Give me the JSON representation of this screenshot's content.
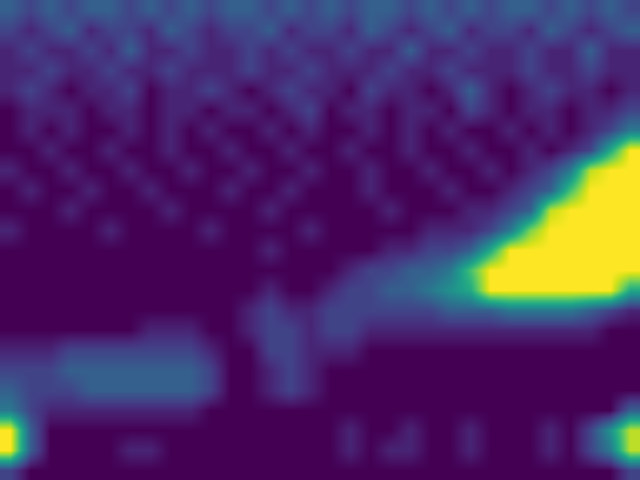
{
  "chart_data": {
    "type": "heatmap",
    "color": "Viridis",
    "tick_labels": false,
    "zlim": [
      0,
      1
    ],
    "z": [
      [
        0.3,
        0.2,
        0.3,
        0.2,
        0.3,
        0.3,
        0.2,
        0.3,
        0.2,
        0.3,
        0.2,
        0.3,
        0.3,
        0.2,
        0.3,
        0.2,
        0.3,
        0.2,
        0.3,
        0.3,
        0.2,
        0.3,
        0.2,
        0.3,
        0.2,
        0.3,
        0.3,
        0.2,
        0.3,
        0.2,
        0.3,
        0.2
      ],
      [
        0.2,
        0.1,
        0.2,
        0.3,
        0.1,
        0.2,
        0.2,
        0.1,
        0.3,
        0.2,
        0.1,
        0.2,
        0.2,
        0.3,
        0.1,
        0.2,
        0.2,
        0.1,
        0.3,
        0.2,
        0.1,
        0.2,
        0.3,
        0.1,
        0.2,
        0.2,
        0.1,
        0.3,
        0.2,
        0.1,
        0.2,
        0.3
      ],
      [
        0.1,
        0.2,
        0.1,
        0.1,
        0.2,
        0.1,
        0.3,
        0.1,
        0.1,
        0.2,
        0.1,
        0.1,
        0.2,
        0.1,
        0.2,
        0.1,
        0.1,
        0.2,
        0.1,
        0.1,
        0.3,
        0.1,
        0.1,
        0.2,
        0.1,
        0.1,
        0.2,
        0.1,
        0.1,
        0.3,
        0.1,
        0.1
      ],
      [
        0.1,
        0.1,
        0.2,
        0.1,
        0.1,
        0.2,
        0.1,
        0.1,
        0.2,
        0.1,
        0.1,
        0.1,
        0.2,
        0.1,
        0.1,
        0.2,
        0.1,
        0.1,
        0.1,
        0.2,
        0.1,
        0.1,
        0.2,
        0.1,
        0.1,
        0.1,
        0.2,
        0.1,
        0.1,
        0.2,
        0.1,
        0.1
      ],
      [
        0.1,
        0.2,
        0.1,
        0,
        0.1,
        0.1,
        0.2,
        0,
        0.1,
        0.1,
        0.2,
        0.1,
        0,
        0.1,
        0.2,
        0.1,
        0.1,
        0,
        0.2,
        0.1,
        0.1,
        0,
        0.1,
        0.3,
        0.1,
        0,
        0.1,
        0.2,
        0.1,
        0.1,
        0,
        0.1
      ],
      [
        0,
        0.1,
        0.1,
        0.1,
        0,
        0.1,
        0.1,
        0,
        0.1,
        0.1,
        0,
        0.1,
        0.1,
        0,
        0.1,
        0.2,
        0,
        0.1,
        0.1,
        0,
        0.1,
        0.1,
        0,
        0.2,
        0.1,
        0,
        0.1,
        0.1,
        0,
        0.1,
        0.1,
        0.2
      ],
      [
        0,
        0.1,
        0,
        0.1,
        0,
        0,
        0.1,
        0,
        0.1,
        0,
        0.1,
        0,
        0,
        0.1,
        0,
        0.1,
        0,
        0,
        0.1,
        0,
        0.1,
        0,
        0.1,
        0,
        0,
        0.1,
        0,
        0.1,
        0,
        0.1,
        0.2,
        0.4
      ],
      [
        0,
        0,
        0.1,
        0,
        0,
        0.1,
        0,
        0,
        0.1,
        0,
        0,
        0.1,
        0,
        0,
        0.1,
        0,
        0,
        0.1,
        0,
        0,
        0.1,
        0,
        0,
        0.1,
        0,
        0,
        0.1,
        0,
        0.1,
        0.2,
        0.6,
        1
      ],
      [
        0.1,
        0,
        0,
        0.1,
        0,
        0,
        0.1,
        0,
        0,
        0.1,
        0,
        0,
        0.1,
        0,
        0,
        0.1,
        0,
        0,
        0.1,
        0,
        0,
        0.1,
        0,
        0,
        0.1,
        0,
        0.1,
        0.2,
        0.4,
        0.9,
        1,
        1
      ],
      [
        0,
        0.1,
        0,
        0,
        0.1,
        0,
        0,
        0.1,
        0,
        0,
        0,
        0.1,
        0,
        0,
        0.1,
        0,
        0,
        0,
        0.1,
        0,
        0,
        0,
        0.1,
        0,
        0,
        0.1,
        0.2,
        0.3,
        0.7,
        1,
        1,
        1
      ],
      [
        0,
        0,
        0,
        0.1,
        0,
        0,
        0,
        0,
        0.1,
        0,
        0,
        0,
        0,
        0.1,
        0,
        0,
        0,
        0,
        0,
        0.1,
        0,
        0,
        0,
        0.1,
        0.1,
        0.2,
        0.3,
        0.9,
        1,
        1,
        1,
        1
      ],
      [
        0.1,
        0,
        0,
        0,
        0,
        0.1,
        0,
        0,
        0,
        0,
        0.1,
        0,
        0,
        0,
        0,
        0.1,
        0,
        0,
        0,
        0,
        0,
        0.1,
        0.1,
        0.1,
        0.2,
        0.4,
        0.8,
        1,
        1,
        1,
        1,
        1
      ],
      [
        0,
        0,
        0,
        0,
        0,
        0,
        0,
        0,
        0,
        0,
        0,
        0,
        0,
        0.1,
        0,
        0,
        0,
        0,
        0,
        0.1,
        0.1,
        0.2,
        0.2,
        0.3,
        0.6,
        1,
        1,
        1,
        1,
        1,
        1,
        1
      ],
      [
        0,
        0,
        0,
        0,
        0,
        0,
        0,
        0,
        0,
        0,
        0,
        0,
        0,
        0,
        0,
        0,
        0,
        0.1,
        0.2,
        0.2,
        0.3,
        0.3,
        0.4,
        0.7,
        1,
        1,
        1,
        1,
        1,
        1,
        1,
        1
      ],
      [
        0,
        0,
        0,
        0,
        0,
        0,
        0,
        0,
        0,
        0,
        0,
        0,
        0,
        0.1,
        0,
        0,
        0.1,
        0.2,
        0.2,
        0.3,
        0.3,
        0.4,
        0.5,
        0.6,
        1,
        1,
        1,
        1,
        1,
        1,
        1,
        0.6
      ],
      [
        0,
        0,
        0,
        0,
        0,
        0,
        0,
        0,
        0,
        0,
        0,
        0,
        0.1,
        0.2,
        0.1,
        0.1,
        0.2,
        0.2,
        0.2,
        0.2,
        0.2,
        0.2,
        0.3,
        0.3,
        0.3,
        0.4,
        0.4,
        0.4,
        0.4,
        0.3,
        0.2,
        0.1
      ],
      [
        0,
        0,
        0,
        0,
        0,
        0,
        0,
        0.1,
        0.1,
        0.1,
        0,
        0,
        0.1,
        0.2,
        0.2,
        0.1,
        0.2,
        0.2,
        0.1,
        0.1,
        0.1,
        0.1,
        0.1,
        0.1,
        0.1,
        0.1,
        0.1,
        0.1,
        0.1,
        0.1,
        0,
        0
      ],
      [
        0.1,
        0.1,
        0.1,
        0.2,
        0.2,
        0.2,
        0.2,
        0.2,
        0.2,
        0.2,
        0.1,
        0,
        0,
        0.2,
        0.2,
        0.1,
        0.1,
        0.1,
        0,
        0,
        0,
        0,
        0,
        0,
        0,
        0,
        0,
        0,
        0,
        0,
        0,
        0
      ],
      [
        0.2,
        0.2,
        0.2,
        0.3,
        0.3,
        0.3,
        0.3,
        0.3,
        0.3,
        0.3,
        0.2,
        0,
        0,
        0.1,
        0.2,
        0.1,
        0,
        0,
        0,
        0,
        0,
        0,
        0,
        0,
        0,
        0,
        0,
        0,
        0,
        0,
        0,
        0
      ],
      [
        0.3,
        0.2,
        0.2,
        0.2,
        0.3,
        0.3,
        0.3,
        0.3,
        0.3,
        0.3,
        0.2,
        0,
        0,
        0.1,
        0.2,
        0.1,
        0,
        0,
        0,
        0,
        0,
        0,
        0,
        0,
        0,
        0,
        0,
        0,
        0,
        0,
        0,
        0
      ],
      [
        0.4,
        0.2,
        0.1,
        0.1,
        0.1,
        0.1,
        0.1,
        0.1,
        0.1,
        0.1,
        0,
        0,
        0,
        0,
        0,
        0,
        0,
        0,
        0,
        0,
        0,
        0,
        0,
        0,
        0,
        0,
        0,
        0,
        0,
        0,
        0,
        0.3
      ],
      [
        1,
        0.3,
        0,
        0,
        0,
        0,
        0,
        0,
        0,
        0,
        0,
        0,
        0,
        0,
        0,
        0,
        0,
        0.1,
        0,
        0,
        0.1,
        0,
        0,
        0.1,
        0,
        0,
        0,
        0.1,
        0,
        0.2,
        0.5,
        0.9
      ],
      [
        1,
        0.3,
        0,
        0,
        0,
        0,
        0.1,
        0.1,
        0,
        0,
        0,
        0,
        0,
        0,
        0,
        0,
        0,
        0.1,
        0,
        0.1,
        0.1,
        0,
        0,
        0.1,
        0,
        0,
        0,
        0.1,
        0,
        0.2,
        0.4,
        0.9
      ],
      [
        0.2,
        0,
        0,
        0,
        0,
        0,
        0,
        0,
        0,
        0,
        0,
        0,
        0,
        0,
        0,
        0,
        0,
        0,
        0,
        0,
        0,
        0,
        0,
        0,
        0,
        0,
        0,
        0,
        0,
        0,
        0,
        0.2
      ]
    ]
  }
}
